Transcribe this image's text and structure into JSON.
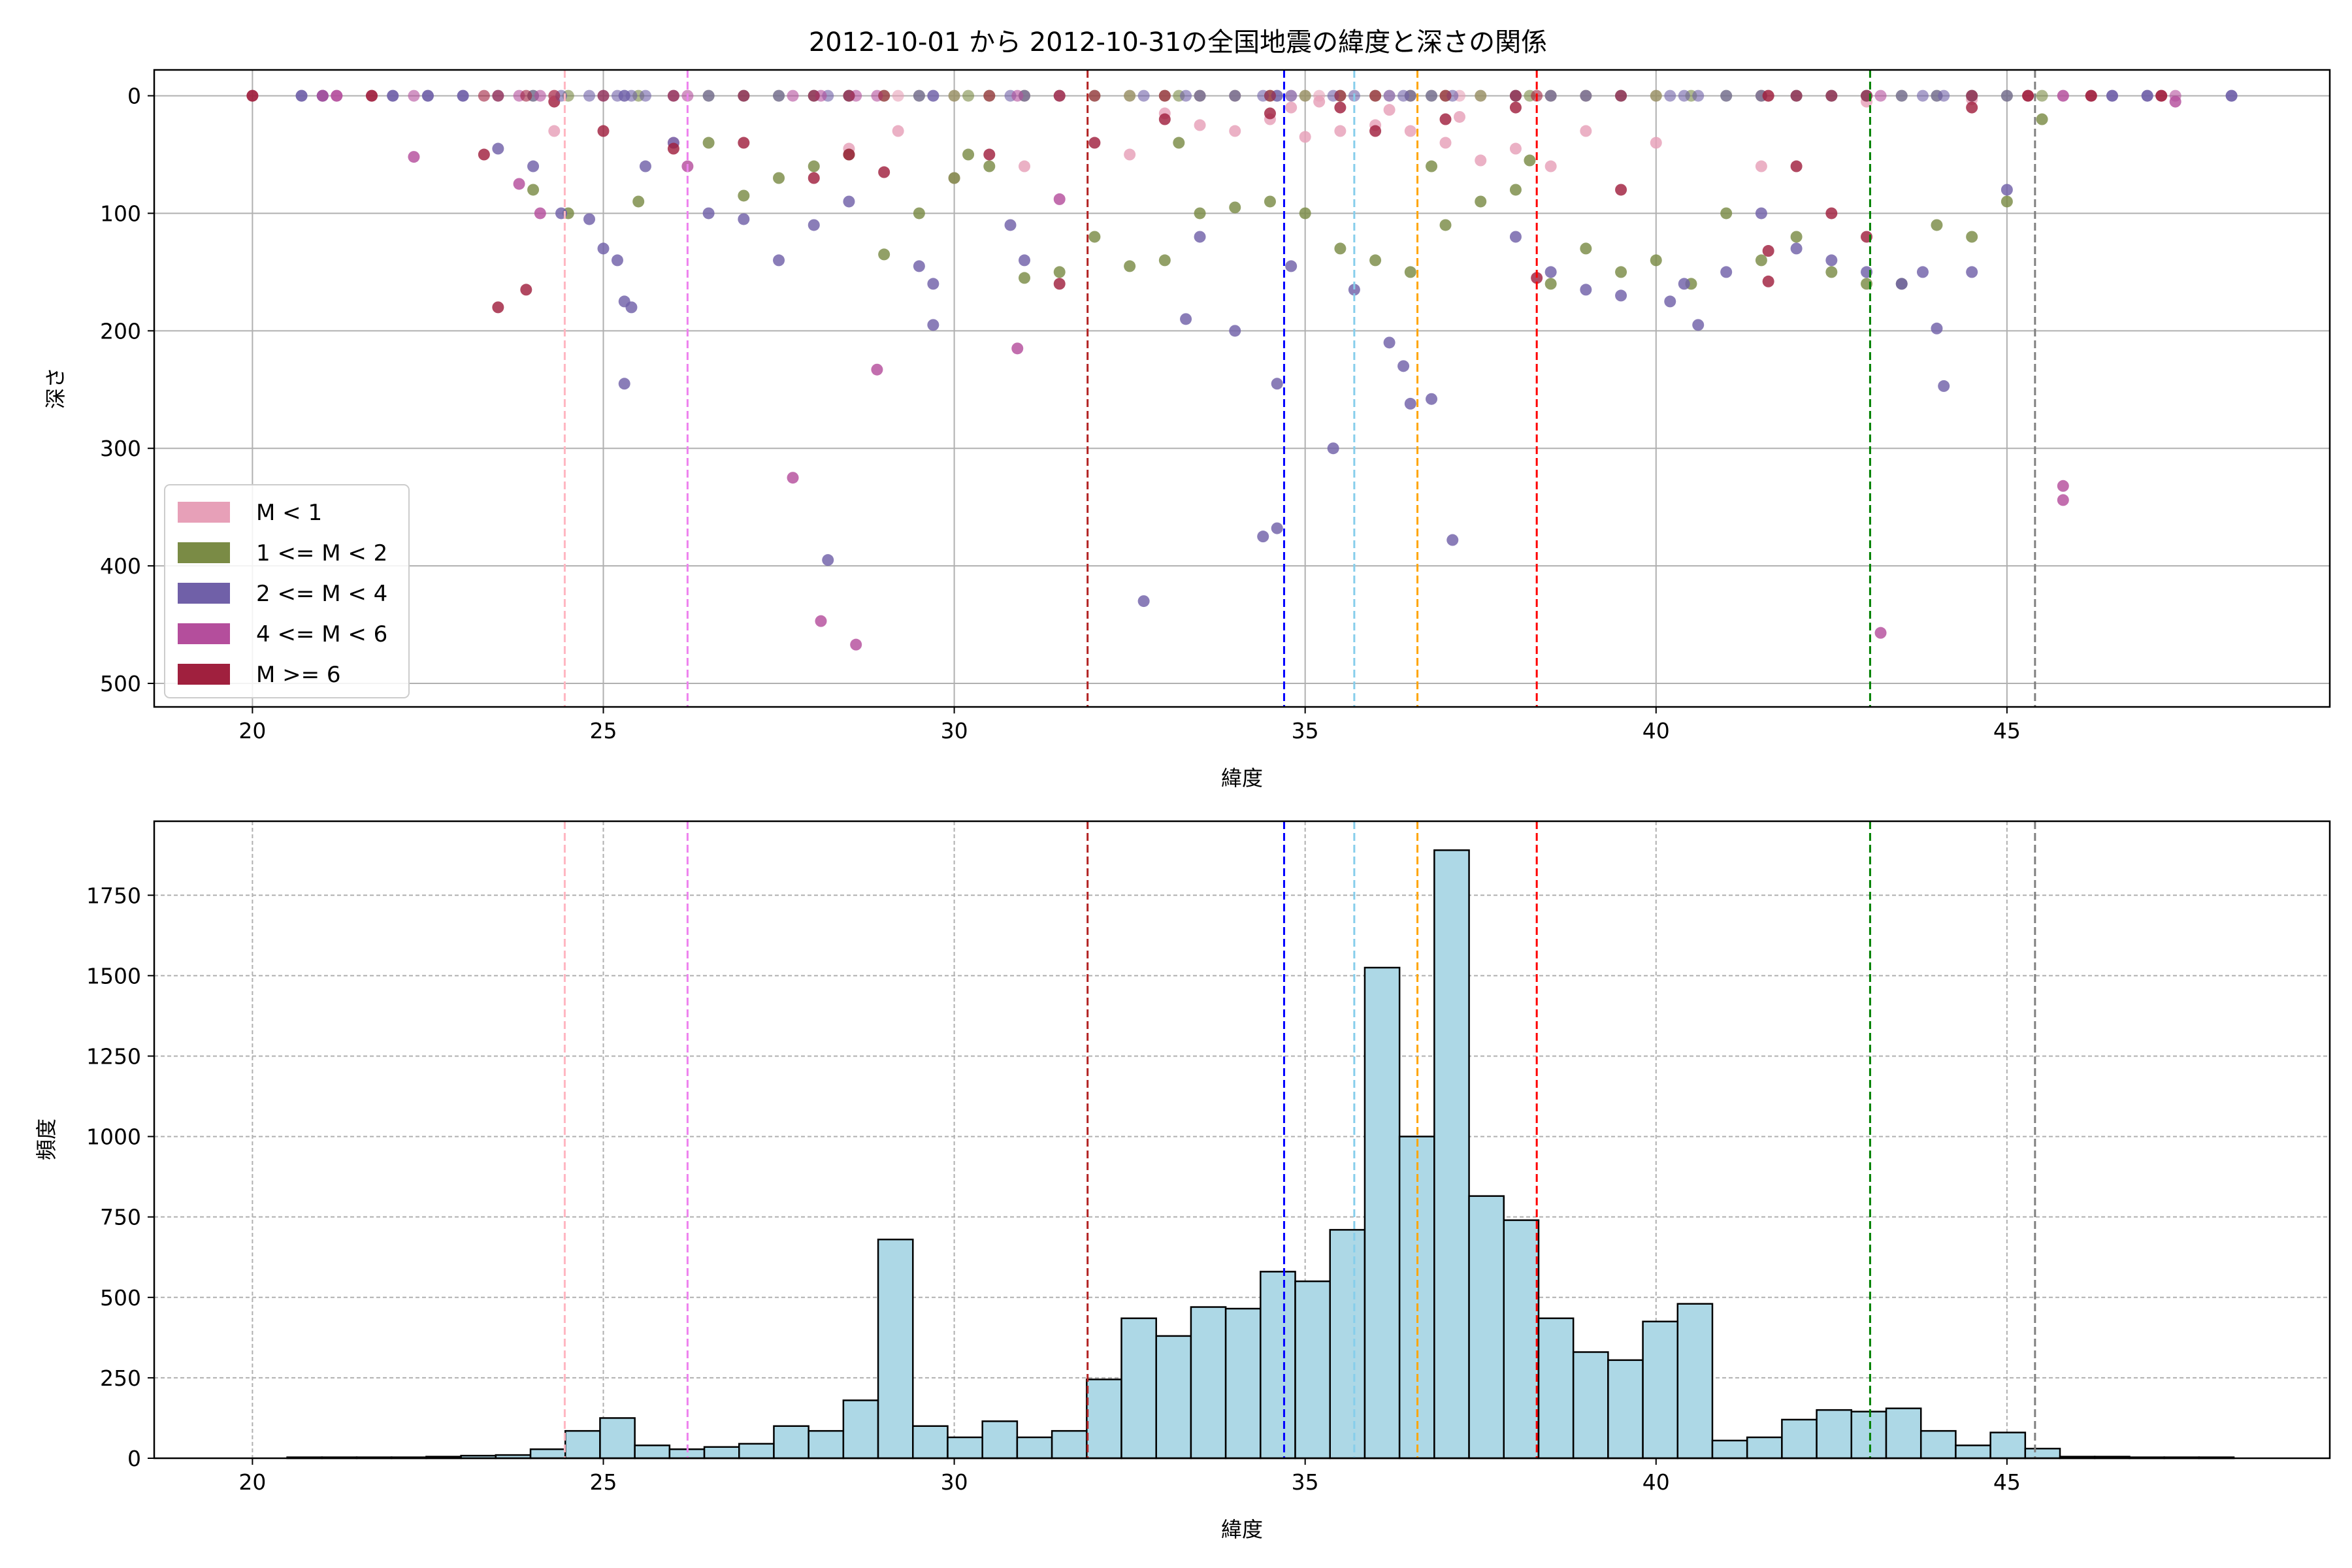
{
  "title": "2012-10-01 から 2012-10-31の全国地震の緯度と深さの関係",
  "chart_data": [
    {
      "type": "scatter",
      "xlabel": "緯度",
      "ylabel": "深さ",
      "xlim": [
        18.6,
        49.6
      ],
      "ylim": [
        520,
        -22
      ],
      "y_inverted": true,
      "xticks": [
        20,
        25,
        30,
        35,
        40,
        45
      ],
      "yticks": [
        0,
        100,
        200,
        300,
        400,
        500
      ],
      "grid": true,
      "legend_position": "lower-left",
      "legend": [
        {
          "label": "M < 1",
          "color": "#e7a0b8"
        },
        {
          "label": "1 <= M < 2",
          "color": "#7a8b45"
        },
        {
          "label": "2 <= M < 4",
          "color": "#7060a8"
        },
        {
          "label": "4 <= M < 6",
          "color": "#b44e9c"
        },
        {
          "label": "M >= 6",
          "color": "#a0203e"
        }
      ],
      "series": [
        {
          "color": "#e7a0b8",
          "points": [
            [
              33.0,
              15
            ],
            [
              33.5,
              25
            ],
            [
              34.0,
              30
            ],
            [
              34.5,
              20
            ],
            [
              35.0,
              35
            ],
            [
              35.5,
              30
            ],
            [
              36.0,
              25
            ],
            [
              36.5,
              30
            ],
            [
              37.0,
              40
            ],
            [
              37.5,
              55
            ],
            [
              38.0,
              45
            ],
            [
              38.5,
              60
            ],
            [
              39.0,
              30
            ],
            [
              29.2,
              30
            ],
            [
              28.5,
              45
            ],
            [
              26.0,
              40
            ],
            [
              24.3,
              30
            ],
            [
              34.8,
              10
            ],
            [
              35.2,
              5
            ],
            [
              36.2,
              12
            ],
            [
              37.2,
              18
            ],
            [
              40.0,
              40
            ],
            [
              41.5,
              60
            ],
            [
              43.0,
              5
            ],
            [
              44.5,
              3
            ],
            [
              32.5,
              50
            ],
            [
              31.0,
              60
            ],
            [
              30.0,
              70
            ]
          ]
        },
        {
          "color": "#7a8b45",
          "points": [
            [
              24.0,
              80
            ],
            [
              24.5,
              100
            ],
            [
              25.5,
              90
            ],
            [
              26.5,
              40
            ],
            [
              27.0,
              85
            ],
            [
              27.5,
              70
            ],
            [
              28.0,
              60
            ],
            [
              28.5,
              50
            ],
            [
              29.0,
              135
            ],
            [
              29.5,
              100
            ],
            [
              30.0,
              70
            ],
            [
              30.5,
              60
            ],
            [
              31.0,
              155
            ],
            [
              31.5,
              150
            ],
            [
              32.0,
              120
            ],
            [
              32.5,
              145
            ],
            [
              33.0,
              140
            ],
            [
              33.5,
              100
            ],
            [
              34.0,
              95
            ],
            [
              34.5,
              90
            ],
            [
              35.0,
              100
            ],
            [
              35.5,
              130
            ],
            [
              36.0,
              140
            ],
            [
              36.5,
              150
            ],
            [
              37.0,
              110
            ],
            [
              37.5,
              90
            ],
            [
              38.0,
              80
            ],
            [
              38.5,
              160
            ],
            [
              39.0,
              130
            ],
            [
              39.5,
              150
            ],
            [
              40.0,
              140
            ],
            [
              40.5,
              160
            ],
            [
              41.0,
              100
            ],
            [
              41.5,
              140
            ],
            [
              42.0,
              120
            ],
            [
              42.5,
              150
            ],
            [
              43.0,
              160
            ],
            [
              43.5,
              160
            ],
            [
              44.0,
              110
            ],
            [
              44.5,
              120
            ],
            [
              45.0,
              90
            ],
            [
              45.5,
              20
            ],
            [
              30.2,
              50
            ],
            [
              33.2,
              40
            ],
            [
              36.8,
              60
            ],
            [
              38.2,
              55
            ]
          ]
        },
        {
          "color": "#7060a8",
          "points": [
            [
              23.5,
              45
            ],
            [
              24.0,
              60
            ],
            [
              24.4,
              100
            ],
            [
              24.8,
              105
            ],
            [
              25.0,
              130
            ],
            [
              25.2,
              140
            ],
            [
              25.3,
              175
            ],
            [
              25.4,
              180
            ],
            [
              25.3,
              245
            ],
            [
              25.6,
              60
            ],
            [
              26.0,
              40
            ],
            [
              26.5,
              100
            ],
            [
              27.0,
              105
            ],
            [
              27.5,
              140
            ],
            [
              28.0,
              110
            ],
            [
              28.2,
              395
            ],
            [
              28.5,
              90
            ],
            [
              29.5,
              145
            ],
            [
              29.7,
              160
            ],
            [
              29.7,
              195
            ],
            [
              30.8,
              110
            ],
            [
              31.0,
              140
            ],
            [
              32.7,
              430
            ],
            [
              33.3,
              190
            ],
            [
              33.5,
              120
            ],
            [
              34.0,
              200
            ],
            [
              34.4,
              375
            ],
            [
              34.6,
              368
            ],
            [
              34.6,
              245
            ],
            [
              34.8,
              145
            ],
            [
              35.4,
              300
            ],
            [
              35.7,
              165
            ],
            [
              36.2,
              210
            ],
            [
              36.4,
              230
            ],
            [
              36.5,
              262
            ],
            [
              36.8,
              258
            ],
            [
              37.1,
              378
            ],
            [
              38.0,
              120
            ],
            [
              38.5,
              150
            ],
            [
              39.0,
              165
            ],
            [
              39.5,
              170
            ],
            [
              40.2,
              175
            ],
            [
              40.4,
              160
            ],
            [
              40.6,
              195
            ],
            [
              41.0,
              150
            ],
            [
              41.5,
              100
            ],
            [
              42.0,
              130
            ],
            [
              42.5,
              140
            ],
            [
              43.0,
              150
            ],
            [
              43.5,
              160
            ],
            [
              43.8,
              150
            ],
            [
              44.0,
              198
            ],
            [
              44.1,
              247
            ],
            [
              44.5,
              150
            ],
            [
              45.0,
              80
            ],
            [
              20.7,
              0
            ],
            [
              21.0,
              0
            ],
            [
              22.0,
              0
            ],
            [
              22.5,
              0
            ],
            [
              23.0,
              0
            ],
            [
              46.5,
              0
            ],
            [
              47.0,
              0
            ],
            [
              48.2,
              0
            ]
          ]
        },
        {
          "color": "#b44e9c",
          "points": [
            [
              22.3,
              52
            ],
            [
              23.8,
              75
            ],
            [
              24.1,
              100
            ],
            [
              26.2,
              60
            ],
            [
              27.7,
              325
            ],
            [
              28.1,
              447
            ],
            [
              28.6,
              467
            ],
            [
              28.9,
              233
            ],
            [
              30.9,
              215
            ],
            [
              31.5,
              88
            ],
            [
              43.2,
              457
            ],
            [
              45.8,
              332
            ],
            [
              45.8,
              344
            ],
            [
              47.4,
              5
            ],
            [
              21.0,
              0
            ],
            [
              21.2,
              0
            ]
          ]
        },
        {
          "color": "#a0203e",
          "points": [
            [
              20.0,
              0
            ],
            [
              21.7,
              0
            ],
            [
              23.3,
              50
            ],
            [
              23.5,
              180
            ],
            [
              23.9,
              165
            ],
            [
              24.3,
              5
            ],
            [
              25.0,
              30
            ],
            [
              26.0,
              45
            ],
            [
              27.0,
              40
            ],
            [
              28.0,
              70
            ],
            [
              28.5,
              50
            ],
            [
              29.0,
              65
            ],
            [
              30.5,
              50
            ],
            [
              31.5,
              160
            ],
            [
              32.0,
              40
            ],
            [
              33.0,
              20
            ],
            [
              34.5,
              15
            ],
            [
              35.5,
              10
            ],
            [
              36.0,
              30
            ],
            [
              37.0,
              20
            ],
            [
              38.0,
              10
            ],
            [
              38.3,
              155
            ],
            [
              39.5,
              80
            ],
            [
              41.6,
              132
            ],
            [
              41.6,
              158
            ],
            [
              42.0,
              60
            ],
            [
              42.5,
              100
            ],
            [
              43.0,
              120
            ],
            [
              44.5,
              10
            ],
            [
              45.3,
              0
            ],
            [
              46.2,
              0
            ],
            [
              47.2,
              0
            ]
          ]
        }
      ],
      "vlines": [
        {
          "x": 24.45,
          "color": "#ffb6c1"
        },
        {
          "x": 26.2,
          "color": "#ee82ee"
        },
        {
          "x": 31.9,
          "color": "#b22222"
        },
        {
          "x": 34.7,
          "color": "#0000ff"
        },
        {
          "x": 35.7,
          "color": "#87ceeb"
        },
        {
          "x": 36.6,
          "color": "#ffa500"
        },
        {
          "x": 38.3,
          "color": "#ff0000"
        },
        {
          "x": 43.05,
          "color": "#008000"
        },
        {
          "x": 45.4,
          "color": "#808080"
        }
      ]
    },
    {
      "type": "bar",
      "xlabel": "緯度",
      "ylabel": "頻度",
      "xlim": [
        18.6,
        49.6
      ],
      "ylim": [
        0,
        1980
      ],
      "xticks": [
        20,
        25,
        30,
        35,
        40,
        45
      ],
      "yticks": [
        0,
        250,
        500,
        750,
        1000,
        1250,
        1500,
        1750
      ],
      "grid": true,
      "bar_color": "#add8e6",
      "edge_color": "#000000",
      "bin_start": 20.0,
      "bin_width": 0.4953,
      "values": [
        0,
        3,
        3,
        3,
        3,
        5,
        8,
        10,
        28,
        85,
        125,
        40,
        28,
        35,
        45,
        100,
        85,
        180,
        680,
        100,
        65,
        115,
        65,
        85,
        245,
        435,
        380,
        470,
        465,
        580,
        550,
        710,
        1525,
        1000,
        1890,
        815,
        740,
        435,
        330,
        305,
        425,
        480,
        55,
        65,
        120,
        150,
        145,
        155,
        85,
        40,
        80,
        30,
        5,
        5,
        3,
        3,
        3,
        0
      ],
      "vlines": [
        {
          "x": 24.45,
          "color": "#ffb6c1"
        },
        {
          "x": 26.2,
          "color": "#ee82ee"
        },
        {
          "x": 31.9,
          "color": "#b22222"
        },
        {
          "x": 34.7,
          "color": "#0000ff"
        },
        {
          "x": 35.7,
          "color": "#87ceeb"
        },
        {
          "x": 36.6,
          "color": "#ffa500"
        },
        {
          "x": 38.3,
          "color": "#ff0000"
        },
        {
          "x": 43.05,
          "color": "#008000"
        },
        {
          "x": 45.4,
          "color": "#808080"
        }
      ]
    }
  ]
}
